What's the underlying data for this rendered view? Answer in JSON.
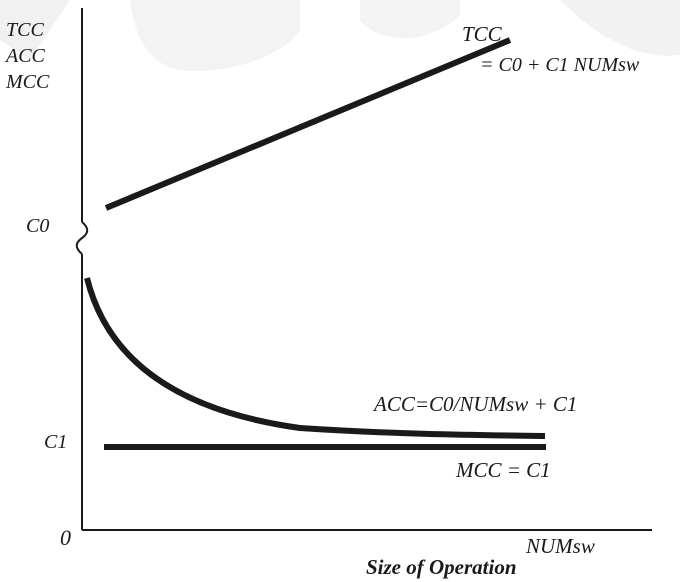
{
  "diagram": {
    "y_axis_labels": [
      "TCC",
      "ACC",
      "MCC"
    ],
    "y_markers": {
      "c0": "C0",
      "c1": "C1",
      "origin": "0"
    },
    "x_axis": {
      "variable": "NUMsw",
      "title": "Size of Operation"
    },
    "curves": {
      "tcc": {
        "name": "TCC",
        "equation": "= C0 + C1 NUMsw"
      },
      "acc": {
        "equation": "ACC=C0/NUMsw + C1"
      },
      "mcc": {
        "equation": "MCC = C1"
      }
    },
    "colors": {
      "line": "#1a1a1a",
      "watermark": "#ececec"
    }
  }
}
